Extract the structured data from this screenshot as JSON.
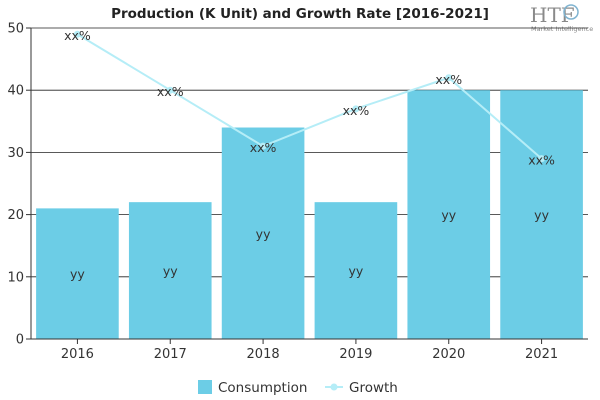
{
  "logo": {
    "brand": "HTF",
    "tagline": "Market Intelligence"
  },
  "chart_data": {
    "type": "bar",
    "title": "Production (K Unit) and Growth Rate [2016-2021]",
    "categories": [
      "2016",
      "2017",
      "2018",
      "2019",
      "2020",
      "2021"
    ],
    "ylim": [
      0,
      50
    ],
    "yticks": [
      0,
      10,
      20,
      30,
      40,
      50
    ],
    "grid": true,
    "legend_position": "bottom",
    "series": [
      {
        "name": "Consumption",
        "kind": "bar",
        "color": "#6ccde6",
        "values": [
          21,
          22,
          34,
          22,
          40,
          40
        ],
        "labels": [
          "yy",
          "yy",
          "yy",
          "yy",
          "yy",
          "yy"
        ]
      },
      {
        "name": "Growth",
        "kind": "line",
        "color": "#b5edf7",
        "values": [
          49,
          40,
          31,
          37,
          42,
          29
        ],
        "labels": [
          "xx%",
          "xx%",
          "xx%",
          "xx%",
          "xx%",
          "xx%"
        ]
      }
    ]
  }
}
